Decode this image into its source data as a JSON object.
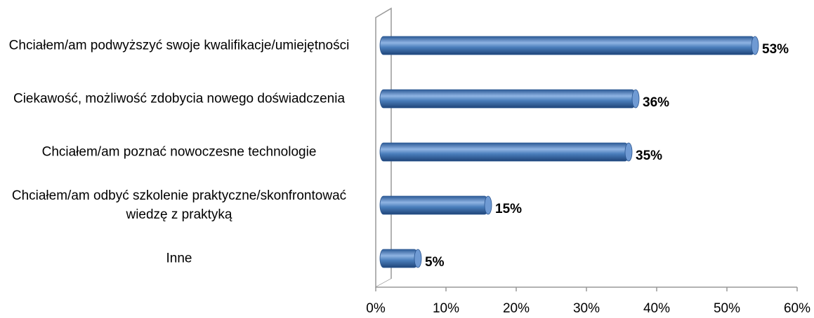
{
  "chart_data": {
    "type": "bar",
    "orientation": "horizontal",
    "categories": [
      "Chciałem/am podwyższyć swoje kwalifikacje/umiejętności",
      "Ciekawość, możliwość zdobycia nowego doświadczenia",
      "Chciałem/am poznać nowoczesne technologie",
      "Chciałem/am odbyć szkolenie praktyczne/skonfrontować wiedzę z praktyką",
      "Inne"
    ],
    "values": [
      53,
      36,
      35,
      15,
      5
    ],
    "value_labels": [
      "53%",
      "36%",
      "35%",
      "15%",
      "5%"
    ],
    "color": "#4a7ebb",
    "xlim": [
      0,
      60
    ],
    "xticks": [
      {
        "value": 0,
        "label": "0%"
      },
      {
        "value": 10,
        "label": "10%"
      },
      {
        "value": 20,
        "label": "20%"
      },
      {
        "value": 30,
        "label": "30%"
      },
      {
        "value": 40,
        "label": "40%"
      },
      {
        "value": 50,
        "label": "50%"
      },
      {
        "value": 60,
        "label": "60%"
      }
    ]
  }
}
